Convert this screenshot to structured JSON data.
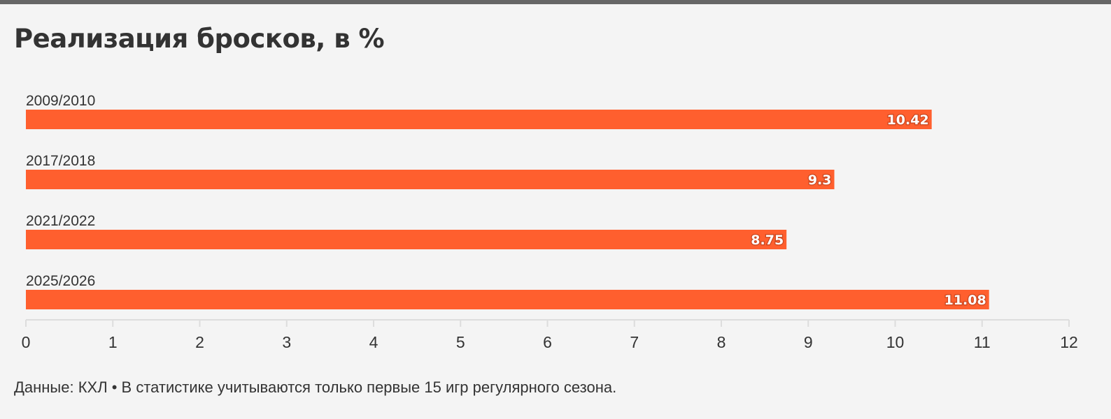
{
  "header": {
    "title": "Реализация бросков, в %"
  },
  "footer": {
    "note": "Данные: КХЛ • В статистике учитываются только первые 15 игр регулярного сезона."
  },
  "colors": {
    "bar": "#ff5f2e",
    "axis": "#dddddd",
    "text": "#333333",
    "background": "#f4f4f4"
  },
  "chart_data": {
    "type": "bar",
    "orientation": "horizontal",
    "title": "Реализация бросков, в %",
    "categories": [
      "2009/2010",
      "2017/2018",
      "2021/2022",
      "2025/2026"
    ],
    "values": [
      10.42,
      9.3,
      8.75,
      11.08
    ],
    "value_labels": [
      "10.42",
      "9.3",
      "8.75",
      "11.08"
    ],
    "xlim": [
      0,
      12
    ],
    "xticks": [
      "0",
      "1",
      "2",
      "3",
      "4",
      "5",
      "6",
      "7",
      "8",
      "9",
      "10",
      "11",
      "12"
    ],
    "xlabel": "",
    "ylabel": "",
    "grid": false,
    "legend": "none"
  }
}
